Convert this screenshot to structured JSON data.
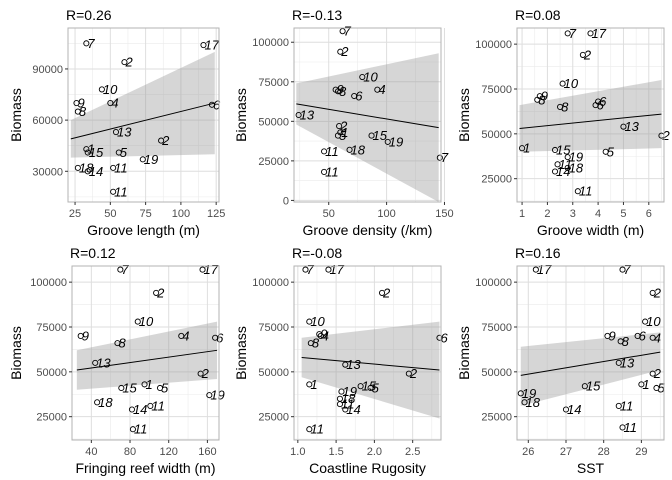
{
  "chart_data": [
    {
      "type": "scatter",
      "title": "R=0.26",
      "xlabel": "Groove length (m)",
      "ylabel": "Biomass",
      "xlim": [
        20,
        127
      ],
      "ylim": [
        12000,
        114000
      ],
      "xticks": [
        25,
        50,
        75,
        100,
        125
      ],
      "yticks": [
        30000,
        60000,
        90000
      ],
      "ytick_labels": [
        "30000",
        "60000",
        "90000"
      ],
      "grid": true,
      "trend": {
        "x": [
          22,
          124
        ],
        "y": [
          49000,
          70000
        ],
        "lower": [
          38000,
          40000
        ],
        "upper": [
          60000,
          100000
        ]
      },
      "points": [
        {
          "label": "7",
          "x": 33,
          "y": 105000
        },
        {
          "label": "2",
          "x": 60,
          "y": 94000
        },
        {
          "label": "17",
          "x": 116,
          "y": 104000
        },
        {
          "label": "10",
          "x": 44,
          "y": 78000
        },
        {
          "label": "9",
          "x": 26,
          "y": 70000
        },
        {
          "label": "8",
          "x": 27,
          "y": 65000
        },
        {
          "label": "4",
          "x": 50,
          "y": 70000
        },
        {
          "label": "6",
          "x": 122,
          "y": 69000
        },
        {
          "label": "13",
          "x": 54,
          "y": 53000
        },
        {
          "label": "2",
          "x": 86,
          "y": 48000
        },
        {
          "label": "1",
          "x": 33,
          "y": 43000
        },
        {
          "label": "15",
          "x": 34,
          "y": 41000
        },
        {
          "label": "5",
          "x": 56,
          "y": 41000
        },
        {
          "label": "18",
          "x": 27,
          "y": 32000
        },
        {
          "label": "14",
          "x": 34,
          "y": 30000
        },
        {
          "label": "11",
          "x": 52,
          "y": 32000
        },
        {
          "label": "19",
          "x": 73,
          "y": 37000
        },
        {
          "label": "11",
          "x": 52,
          "y": 18000
        }
      ]
    },
    {
      "type": "scatter",
      "title": "R=-0.13",
      "xlabel": "Groove density (/km)",
      "ylabel": "Biomass",
      "xlim": [
        20,
        147
      ],
      "ylim": [
        -1000,
        109000
      ],
      "xticks": [
        50,
        100,
        150
      ],
      "yticks": [
        0,
        25000,
        50000,
        75000,
        100000
      ],
      "ytick_labels": [
        "0",
        "25000",
        "50000",
        "75000",
        "100000"
      ],
      "grid": true,
      "trend": {
        "x": [
          22,
          145
        ],
        "y": [
          61000,
          46000
        ],
        "lower": [
          48000,
          -1000
        ],
        "upper": [
          74000,
          93000
        ]
      },
      "points": [
        {
          "label": "7",
          "x": 62,
          "y": 107000
        },
        {
          "label": "2",
          "x": 60,
          "y": 94000
        },
        {
          "label": "10",
          "x": 79,
          "y": 78000
        },
        {
          "label": "9",
          "x": 56,
          "y": 70000
        },
        {
          "label": "8",
          "x": 58,
          "y": 69000
        },
        {
          "label": "4",
          "x": 92,
          "y": 70000
        },
        {
          "label": "6",
          "x": 72,
          "y": 66000
        },
        {
          "label": "13",
          "x": 24,
          "y": 54000
        },
        {
          "label": "2",
          "x": 59,
          "y": 47000
        },
        {
          "label": "1",
          "x": 60,
          "y": 43000
        },
        {
          "label": "5",
          "x": 58,
          "y": 41000
        },
        {
          "label": "15",
          "x": 87,
          "y": 41000
        },
        {
          "label": "19",
          "x": 101,
          "y": 37000
        },
        {
          "label": "11",
          "x": 46,
          "y": 31000
        },
        {
          "label": "18",
          "x": 68,
          "y": 32000
        },
        {
          "label": "11",
          "x": 46,
          "y": 18000
        },
        {
          "label": "7",
          "x": 146,
          "y": 27000
        }
      ]
    },
    {
      "type": "scatter",
      "title": "R=0.08",
      "xlabel": "Groove width (m)",
      "ylabel": "Biomass",
      "xlim": [
        0.8,
        6.6
      ],
      "ylim": [
        12000,
        109000
      ],
      "xticks": [
        1,
        2,
        3,
        4,
        5,
        6
      ],
      "yticks": [
        25000,
        50000,
        75000,
        100000
      ],
      "ytick_labels": [
        "25000",
        "50000",
        "75000",
        "100000"
      ],
      "grid": true,
      "trend": {
        "x": [
          0.9,
          6.5
        ],
        "y": [
          53000,
          61000
        ],
        "lower": [
          40000,
          42000
        ],
        "upper": [
          66000,
          80000
        ]
      },
      "points": [
        {
          "label": "7",
          "x": 2.8,
          "y": 106000
        },
        {
          "label": "17",
          "x": 3.7,
          "y": 106000
        },
        {
          "label": "2",
          "x": 3.4,
          "y": 94000
        },
        {
          "label": "10",
          "x": 2.6,
          "y": 78000
        },
        {
          "label": "9",
          "x": 1.7,
          "y": 71000
        },
        {
          "label": "8",
          "x": 1.6,
          "y": 69000
        },
        {
          "label": "6",
          "x": 3.9,
          "y": 66000
        },
        {
          "label": "6",
          "x": 4.0,
          "y": 68000
        },
        {
          "label": "8",
          "x": 2.5,
          "y": 65000
        },
        {
          "label": "13",
          "x": 5.0,
          "y": 54000
        },
        {
          "label": "2",
          "x": 6.5,
          "y": 49000
        },
        {
          "label": "1",
          "x": 1.0,
          "y": 42000
        },
        {
          "label": "15",
          "x": 2.3,
          "y": 41000
        },
        {
          "label": "5",
          "x": 4.3,
          "y": 40000
        },
        {
          "label": "19",
          "x": 2.8,
          "y": 37000
        },
        {
          "label": "11",
          "x": 2.4,
          "y": 33000
        },
        {
          "label": "18",
          "x": 2.8,
          "y": 31000
        },
        {
          "label": "14",
          "x": 2.3,
          "y": 29000
        },
        {
          "label": "11",
          "x": 3.2,
          "y": 18000
        }
      ]
    },
    {
      "type": "scatter",
      "title": "R=0.12",
      "xlabel": "Fringing reef width (m)",
      "ylabel": "Biomass",
      "xlim": [
        20,
        172
      ],
      "ylim": [
        12000,
        109000
      ],
      "xticks": [
        40,
        80,
        120,
        160
      ],
      "yticks": [
        25000,
        50000,
        75000,
        100000
      ],
      "ytick_labels": [
        "25000",
        "50000",
        "75000",
        "100000"
      ],
      "grid": true,
      "trend": {
        "x": [
          25,
          170
        ],
        "y": [
          51000,
          62000
        ],
        "lower": [
          40000,
          46000
        ],
        "upper": [
          62000,
          78000
        ]
      },
      "points": [
        {
          "label": "7",
          "x": 70,
          "y": 107000
        },
        {
          "label": "17",
          "x": 155,
          "y": 107000
        },
        {
          "label": "2",
          "x": 107,
          "y": 94000
        },
        {
          "label": "10",
          "x": 88,
          "y": 78000
        },
        {
          "label": "9",
          "x": 29,
          "y": 70000
        },
        {
          "label": "4",
          "x": 133,
          "y": 70000
        },
        {
          "label": "6",
          "x": 168,
          "y": 69000
        },
        {
          "label": "8",
          "x": 67,
          "y": 66000
        },
        {
          "label": "13",
          "x": 44,
          "y": 55000
        },
        {
          "label": "2",
          "x": 153,
          "y": 49000
        },
        {
          "label": "1",
          "x": 95,
          "y": 43000
        },
        {
          "label": "15",
          "x": 71,
          "y": 41000
        },
        {
          "label": "5",
          "x": 111,
          "y": 41000
        },
        {
          "label": "19",
          "x": 162,
          "y": 37000
        },
        {
          "label": "18",
          "x": 46,
          "y": 33000
        },
        {
          "label": "11",
          "x": 101,
          "y": 31000
        },
        {
          "label": "14",
          "x": 82,
          "y": 29000
        },
        {
          "label": "11",
          "x": 83,
          "y": 18000
        }
      ]
    },
    {
      "type": "scatter",
      "title": "R=-0.08",
      "xlabel": "Coastline Rugosity",
      "ylabel": "Biomass",
      "xlim": [
        0.95,
        2.87
      ],
      "ylim": [
        12000,
        109000
      ],
      "xticks": [
        1.0,
        1.5,
        2.0,
        2.5
      ],
      "xtick_labels": [
        "1.0",
        "1.5",
        "2.0",
        "2.5"
      ],
      "yticks": [
        25000,
        50000,
        75000,
        100000
      ],
      "ytick_labels": [
        "25000",
        "50000",
        "75000",
        "100000"
      ],
      "grid": true,
      "trend": {
        "x": [
          1.05,
          2.85
        ],
        "y": [
          58000,
          51000
        ],
        "lower": [
          47000,
          24000
        ],
        "upper": [
          69000,
          78000
        ]
      },
      "points": [
        {
          "label": "7",
          "x": 1.1,
          "y": 107000
        },
        {
          "label": "17",
          "x": 1.4,
          "y": 107000
        },
        {
          "label": "2",
          "x": 2.1,
          "y": 94000
        },
        {
          "label": "10",
          "x": 1.15,
          "y": 78000
        },
        {
          "label": "9",
          "x": 1.28,
          "y": 71000
        },
        {
          "label": "4",
          "x": 1.3,
          "y": 70000
        },
        {
          "label": "8",
          "x": 1.17,
          "y": 66000
        },
        {
          "label": "6",
          "x": 2.85,
          "y": 69000
        },
        {
          "label": "13",
          "x": 1.62,
          "y": 54000
        },
        {
          "label": "2",
          "x": 2.45,
          "y": 49000
        },
        {
          "label": "1",
          "x": 1.15,
          "y": 43000
        },
        {
          "label": "15",
          "x": 1.82,
          "y": 42000
        },
        {
          "label": "5",
          "x": 1.95,
          "y": 41000
        },
        {
          "label": "19",
          "x": 1.57,
          "y": 39000
        },
        {
          "label": "18",
          "x": 1.55,
          "y": 35000
        },
        {
          "label": "11",
          "x": 1.55,
          "y": 32000
        },
        {
          "label": "14",
          "x": 1.62,
          "y": 29000
        },
        {
          "label": "11",
          "x": 1.15,
          "y": 18000
        }
      ]
    },
    {
      "type": "scatter",
      "title": "R=0.16",
      "xlabel": "SST",
      "ylabel": "Biomass",
      "xlim": [
        25.7,
        29.6
      ],
      "ylim": [
        12000,
        109000
      ],
      "xticks": [
        26,
        27,
        28,
        29
      ],
      "yticks": [
        25000,
        50000,
        75000,
        100000
      ],
      "ytick_labels": [
        "25000",
        "50000",
        "75000",
        "100000"
      ],
      "grid": true,
      "trend": {
        "x": [
          25.8,
          29.5
        ],
        "y": [
          48000,
          61000
        ],
        "lower": [
          31000,
          51000
        ],
        "upper": [
          64000,
          72000
        ]
      },
      "points": [
        {
          "label": "17",
          "x": 26.2,
          "y": 107000
        },
        {
          "label": "7",
          "x": 28.5,
          "y": 107000
        },
        {
          "label": "2",
          "x": 29.3,
          "y": 94000
        },
        {
          "label": "10",
          "x": 29.1,
          "y": 78000
        },
        {
          "label": "9",
          "x": 28.1,
          "y": 70000
        },
        {
          "label": "8",
          "x": 28.45,
          "y": 67000
        },
        {
          "label": "6",
          "x": 28.9,
          "y": 70000
        },
        {
          "label": "4",
          "x": 29.3,
          "y": 69000
        },
        {
          "label": "13",
          "x": 28.4,
          "y": 55000
        },
        {
          "label": "2",
          "x": 29.3,
          "y": 49000
        },
        {
          "label": "1",
          "x": 29.0,
          "y": 43000
        },
        {
          "label": "15",
          "x": 27.5,
          "y": 42000
        },
        {
          "label": "5",
          "x": 29.4,
          "y": 41000
        },
        {
          "label": "19",
          "x": 25.8,
          "y": 38000
        },
        {
          "label": "18",
          "x": 25.9,
          "y": 33000
        },
        {
          "label": "11",
          "x": 28.4,
          "y": 31000
        },
        {
          "label": "14",
          "x": 27.0,
          "y": 29000
        },
        {
          "label": "11",
          "x": 28.5,
          "y": 19000
        }
      ]
    }
  ]
}
